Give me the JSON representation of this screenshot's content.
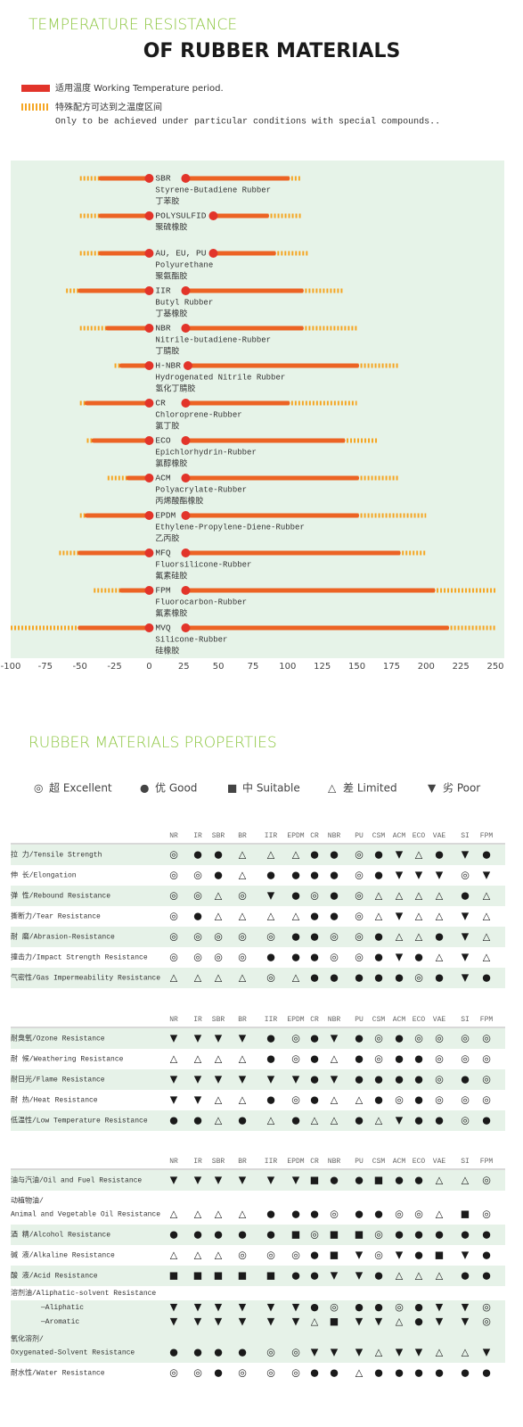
{
  "chart_data": {
    "type": "range",
    "title": "TEMPERATURE RESISTANCE",
    "subtitle": "OF RUBBER MATERIALS",
    "legend": {
      "working": "适用温度 Working Temperature period.",
      "extended": [
        "特殊配方可达到之温度区间",
        "Only to be achieved under particular conditions with special compounds.."
      ]
    },
    "working_color": "#ec6324",
    "extended_color": "#f5a623",
    "dot_color": "#e2342a",
    "background": "#e6f3e8",
    "xlim": [
      -100,
      250
    ],
    "xticks": [
      -100,
      -75,
      -50,
      -25,
      0,
      25,
      50,
      75,
      100,
      125,
      150,
      175,
      200,
      225,
      250
    ],
    "series": [
      {
        "name": "SBR",
        "labels": [
          "Styrene-Butadiene Rubber",
          "丁苯胶"
        ],
        "working": [
          -35,
          100
        ],
        "extended": [
          -50,
          110
        ]
      },
      {
        "name": "POLYSULFID",
        "labels": [
          "聚硫橡胶"
        ],
        "working": [
          -35,
          85
        ],
        "extended": [
          -50,
          110
        ]
      },
      {
        "name": "AU, EU, PU",
        "labels": [
          "Polyurethane",
          "聚氨酯胶"
        ],
        "working": [
          -35,
          90
        ],
        "extended": [
          -50,
          115
        ]
      },
      {
        "name": "IIR",
        "labels": [
          "Butyl Rubber",
          "丁基橡胶"
        ],
        "working": [
          -50,
          110
        ],
        "extended": [
          -60,
          140
        ]
      },
      {
        "name": "NBR",
        "labels": [
          "Nitrile-butadiene-Rubber",
          "丁腈胶"
        ],
        "working": [
          -30,
          110
        ],
        "extended": [
          -50,
          150
        ]
      },
      {
        "name": "H-NBR",
        "labels": [
          "Hydrogenated Nitrile Rubber",
          "氢化丁腈胶"
        ],
        "working": [
          -20,
          150
        ],
        "extended": [
          -25,
          180
        ]
      },
      {
        "name": "CR",
        "labels": [
          "Chloroprene-Rubber",
          "氯丁胶"
        ],
        "working": [
          -45,
          100
        ],
        "extended": [
          -50,
          150
        ]
      },
      {
        "name": "ECO",
        "labels": [
          "Epichlorhydrin-Rubber",
          "氯醇橡胶"
        ],
        "working": [
          -40,
          140
        ],
        "extended": [
          -45,
          165
        ]
      },
      {
        "name": "ACM",
        "labels": [
          "Polyacrylate-Rubber",
          "丙烯酸酯橡胶"
        ],
        "working": [
          -15,
          150
        ],
        "extended": [
          -30,
          180
        ]
      },
      {
        "name": "EPDM",
        "labels": [
          "Ethylene-Propylene-Diene-Rubber",
          "乙丙胶"
        ],
        "working": [
          -45,
          150
        ],
        "extended": [
          -50,
          200
        ]
      },
      {
        "name": "MFQ",
        "labels": [
          "Fluorsilicone-Rubber",
          "氟素硅胶"
        ],
        "working": [
          -50,
          180
        ],
        "extended": [
          -65,
          200
        ]
      },
      {
        "name": "FPM",
        "labels": [
          "Fluorocarbon-Rubber",
          "氟素橡胶"
        ],
        "working": [
          -20,
          205
        ],
        "extended": [
          -40,
          250
        ]
      },
      {
        "name": "MVQ",
        "labels": [
          "Silicone-Rubber",
          "硅橡胶"
        ],
        "working": [
          -50,
          215
        ],
        "extended": [
          -100,
          250
        ]
      }
    ]
  },
  "properties": {
    "title": "RUBBER MATERIALS PROPERTIES",
    "legend": [
      {
        "symbol": "◎",
        "label": "超 Excellent"
      },
      {
        "symbol": "●",
        "label": "优 Good"
      },
      {
        "symbol": "■",
        "label": "中 Suitable"
      },
      {
        "symbol": "△",
        "label": "差 Limited"
      },
      {
        "symbol": "▼",
        "label": "劣 Poor"
      }
    ],
    "tables": [
      {
        "columns": [
          "NR",
          "IR",
          "SBR",
          "BR",
          "IIR",
          "EPDM",
          "CR",
          "NBR",
          "PU",
          "CSM",
          "ACM",
          "ECO",
          "VAE",
          "SI",
          "FPM"
        ],
        "rows": [
          {
            "label": [
              "拉 力/Tensile Strength"
            ],
            "values": [
              "◎",
              "●",
              "●",
              "△",
              "△",
              "△",
              "●",
              "●",
              "◎",
              "●",
              "▼",
              "△",
              "●",
              "▼",
              "●"
            ]
          },
          {
            "label": [
              "伸 长/Elongation"
            ],
            "values": [
              "◎",
              "◎",
              "●",
              "△",
              "●",
              "●",
              "●",
              "●",
              "◎",
              "●",
              "▼",
              "▼",
              "▼",
              "◎",
              "▼"
            ]
          },
          {
            "label": [
              "弹 性/Rebound Resistance"
            ],
            "values": [
              "◎",
              "◎",
              "△",
              "◎",
              "▼",
              "●",
              "◎",
              "●",
              "◎",
              "△",
              "△",
              "△",
              "△",
              "●",
              "△"
            ]
          },
          {
            "label": [
              "撕断力/Tear Resistance"
            ],
            "values": [
              "◎",
              "●",
              "△",
              "△",
              "△",
              "△",
              "●",
              "●",
              "◎",
              "△",
              "▼",
              "△",
              "△",
              "▼",
              "△"
            ]
          },
          {
            "label": [
              "耐 磨/Abrasion-Resistance"
            ],
            "values": [
              "◎",
              "◎",
              "◎",
              "◎",
              "◎",
              "●",
              "●",
              "◎",
              "◎",
              "●",
              "△",
              "△",
              "●",
              "▼",
              "△"
            ]
          },
          {
            "label": [
              "撞击力/Impact Strength Resistance"
            ],
            "values": [
              "◎",
              "◎",
              "◎",
              "◎",
              "●",
              "●",
              "●",
              "◎",
              "◎",
              "●",
              "▼",
              "●",
              "△",
              "▼",
              "△"
            ]
          },
          {
            "label": [
              "气密性/Gas Impermeability Resistance"
            ],
            "values": [
              "△",
              "△",
              "△",
              "△",
              "◎",
              "△",
              "●",
              "●",
              "●",
              "●",
              "●",
              "◎",
              "●",
              "▼",
              "●"
            ]
          }
        ]
      },
      {
        "columns": [
          "NR",
          "IR",
          "SBR",
          "BR",
          "IIR",
          "EPDM",
          "CR",
          "NBR",
          "PU",
          "CSM",
          "ACM",
          "ECO",
          "VAE",
          "SI",
          "FPM"
        ],
        "rows": [
          {
            "label": [
              "耐臭氧/Ozone Resistance"
            ],
            "values": [
              "▼",
              "▼",
              "▼",
              "▼",
              "●",
              "◎",
              "●",
              "▼",
              "●",
              "◎",
              "●",
              "◎",
              "◎",
              "◎",
              "◎"
            ]
          },
          {
            "label": [
              "耐 候/Weathering Resistance"
            ],
            "values": [
              "△",
              "△",
              "△",
              "△",
              "●",
              "◎",
              "●",
              "△",
              "●",
              "◎",
              "●",
              "●",
              "◎",
              "◎",
              "◎"
            ]
          },
          {
            "label": [
              "耐日光/Flame Resistance"
            ],
            "values": [
              "▼",
              "▼",
              "▼",
              "▼",
              "▼",
              "▼",
              "●",
              "▼",
              "●",
              "●",
              "●",
              "●",
              "◎",
              "●",
              "◎"
            ]
          },
          {
            "label": [
              "耐 热/Heat Resistance"
            ],
            "values": [
              "▼",
              "▼",
              "△",
              "△",
              "●",
              "◎",
              "●",
              "△",
              "△",
              "●",
              "◎",
              "●",
              "◎",
              "◎",
              "◎"
            ]
          },
          {
            "label": [
              "低温性/Low Temperature Resistance"
            ],
            "values": [
              "●",
              "●",
              "△",
              "●",
              "△",
              "●",
              "△",
              "△",
              "●",
              "△",
              "▼",
              "●",
              "●",
              "◎",
              "●"
            ]
          }
        ]
      },
      {
        "columns": [
          "NR",
          "IR",
          "SBR",
          "BR",
          "IIR",
          "EPDM",
          "CR",
          "NBR",
          "PU",
          "CSM",
          "ACM",
          "ECO",
          "VAE",
          "SI",
          "FPM"
        ],
        "rows": [
          {
            "label": [
              "油与汽油/Oil and Fuel Resistance"
            ],
            "values": [
              "▼",
              "▼",
              "▼",
              "▼",
              "▼",
              "▼",
              "■",
              "●",
              "●",
              "■",
              "●",
              "●",
              "△",
              "△",
              "◎"
            ]
          },
          {
            "label": [
              "动植物油/",
              "Animal and Vegetable Oil Resistance"
            ],
            "values": [
              "△",
              "△",
              "△",
              "△",
              "●",
              "●",
              "●",
              "◎",
              "●",
              "●",
              "◎",
              "◎",
              "△",
              "■",
              "◎"
            ]
          },
          {
            "label": [
              "酒 精/Alcohol Resistance"
            ],
            "values": [
              "●",
              "●",
              "●",
              "●",
              "●",
              "■",
              "◎",
              "■",
              "■",
              "◎",
              "●",
              "●",
              "●",
              "●",
              "●"
            ]
          },
          {
            "label": [
              "碱 液/Alkaline Resistance"
            ],
            "values": [
              "△",
              "△",
              "△",
              "◎",
              "◎",
              "◎",
              "●",
              "■",
              "▼",
              "◎",
              "▼",
              "●",
              "■",
              "▼",
              "●"
            ]
          },
          {
            "label": [
              "酸 液/Acid Resistance"
            ],
            "values": [
              "■",
              "■",
              "■",
              "■",
              "■",
              "●",
              "●",
              "▼",
              "▼",
              "●",
              "△",
              "△",
              "△",
              "●",
              "●"
            ]
          },
          {
            "label": [
              "溶剂油/Aliphatic-solvent Resistance"
            ]
          },
          {
            "label": [
              "—Aliphatic"
            ],
            "values": [
              "▼",
              "▼",
              "▼",
              "▼",
              "▼",
              "▼",
              "●",
              "◎",
              "●",
              "●",
              "◎",
              "●",
              "▼",
              "▼",
              "◎"
            ]
          },
          {
            "label": [
              "—Aromatic"
            ],
            "values": [
              "▼",
              "▼",
              "▼",
              "▼",
              "▼",
              "▼",
              "△",
              "■",
              "▼",
              "▼",
              "△",
              "●",
              "▼",
              "▼",
              "◎"
            ]
          },
          {
            "label": [
              "氧化溶剂/",
              "Oxygenated-Solvent Resistance"
            ],
            "values": [
              "●",
              "●",
              "●",
              "●",
              "◎",
              "◎",
              "▼",
              "▼",
              "▼",
              "△",
              "▼",
              "▼",
              "△",
              "△",
              "▼"
            ]
          },
          {
            "label": [
              "耐水性/Water Resistance"
            ],
            "values": [
              "◎",
              "◎",
              "●",
              "◎",
              "◎",
              "◎",
              "●",
              "●",
              "△",
              "●",
              "●",
              "●",
              "●",
              "●",
              "●"
            ]
          }
        ]
      }
    ]
  }
}
